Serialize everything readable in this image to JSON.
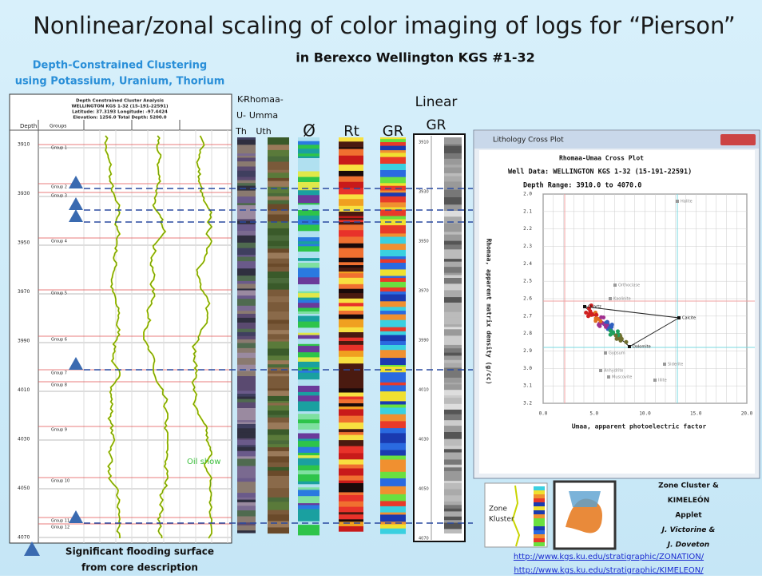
{
  "header": {
    "title": "Nonlinear/zonal scaling of color imaging of logs for “Pierson”",
    "subtitle": "in Berexco Wellington KGS #1-32"
  },
  "clustering_heading": [
    "Depth-Constrained Clustering",
    "using Potassium, Uranium, Thorium"
  ],
  "log_panel": {
    "header_lines": [
      "Depth Constrained Cluster Analysis",
      "WELLINGTON KGS 1-32 (15-191-22591)",
      "Latitude: 37.3193 Longitude: -97.4424",
      "Elevation: 1256.0 Total Depth: 5200.0"
    ],
    "depth_label": "Depth",
    "groups_label": "Groups",
    "depths": [
      "3910",
      "3930",
      "3950",
      "3970",
      "3990",
      "4010",
      "4030",
      "4050",
      "4070"
    ],
    "groups": [
      "Group 1",
      "Group 2",
      "Group 3",
      "Group 4",
      "Group 5",
      "Group 6",
      "Group 7",
      "Group 8",
      "Group 9",
      "Group 10",
      "Group 11",
      "Group 12"
    ],
    "oil_show": "Oil show"
  },
  "columns": [
    [
      "K-",
      "U-",
      "Th"
    ],
    [
      "Rhomaa-",
      "Umma",
      "Uth"
    ],
    [
      "Ø"
    ],
    [
      "Rt"
    ],
    [
      "GR"
    ],
    [
      "Linear",
      "GR"
    ]
  ],
  "crossplot": {
    "window_title": "Lithology Cross Plot",
    "title": "Rhomaa-Umaa Cross Plot",
    "well": "Well Data: WELLINGTON KGS 1-32 (15-191-22591)",
    "depth_range": "Depth Range: 3910.0 to 4070.0",
    "y_label": "Rhomaa, apparent matrix density (g/cc)",
    "x_label": "Umaa, apparent photoelectric factor",
    "yticks": [
      "2.0",
      "2.1",
      "2.2",
      "2.3",
      "2.4",
      "2.5",
      "2.6",
      "2.7",
      "2.8",
      "2.9",
      "3.0",
      "3.1",
      "3.2"
    ],
    "xticks": [
      "0.0",
      "5.0",
      "10.0",
      "15.0",
      "20.0"
    ],
    "minerals": [
      "Halite",
      "Orthoclase",
      "Kaolinite",
      "Quartz",
      "Calcite",
      "Dolomite",
      "Gypsum",
      "Anhydrite",
      "Siderite",
      "Muscovite",
      "Illite"
    ]
  },
  "legend": [
    "Significant flooding surface",
    "from core description"
  ],
  "inset_label": [
    "Zone",
    "Kluster"
  ],
  "credits": [
    "Zone Cluster &",
    "KIMELEÓN",
    "Applet",
    "J. Victorine &",
    "J. Doveton"
  ],
  "links": [
    "http://www.kgs.ku.edu/stratigraphic/ZONATION/",
    "http://www.kgs.ku.edu/stratigraphic/KIMELEON/"
  ]
}
